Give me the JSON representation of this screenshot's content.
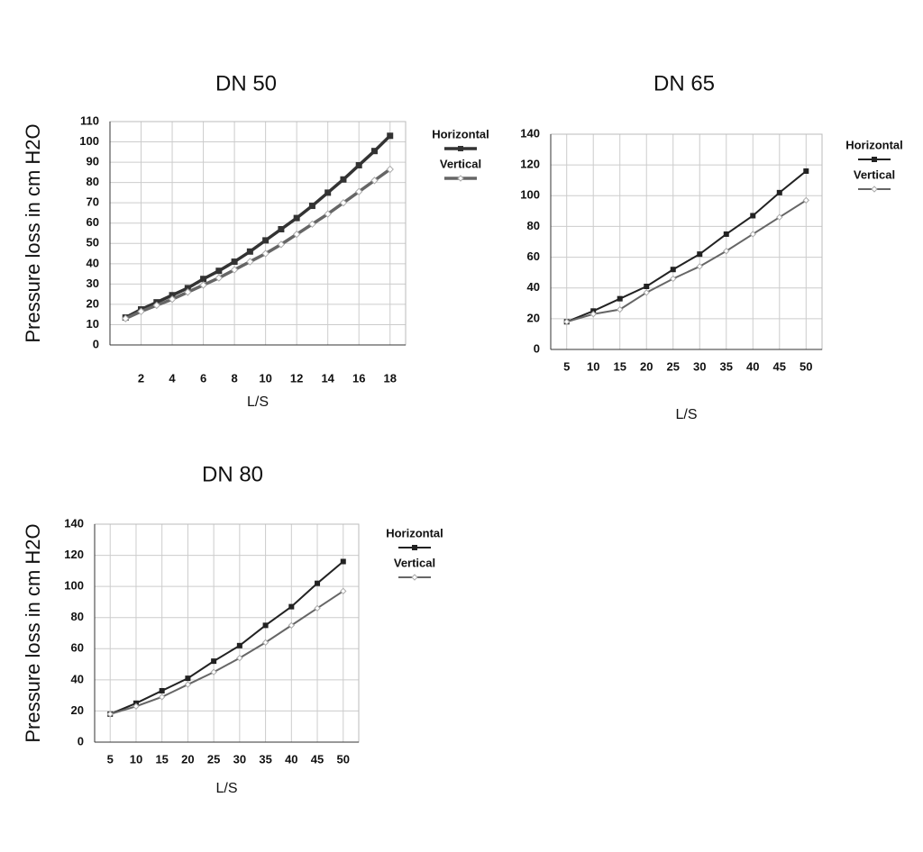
{
  "chart_data": [
    {
      "type": "line",
      "title": "DN 50",
      "x_label": "L/S",
      "y_label": "Pressure loss in cm H2O",
      "x": [
        1,
        2,
        3,
        4,
        5,
        6,
        7,
        8,
        9,
        10,
        11,
        12,
        13,
        14,
        15,
        16,
        17,
        18
      ],
      "xlim": [
        0,
        19
      ],
      "xticks": [
        2,
        4,
        6,
        8,
        10,
        12,
        14,
        16,
        18
      ],
      "ylim": [
        0,
        110
      ],
      "yticks": [
        0,
        10,
        20,
        30,
        40,
        50,
        60,
        70,
        80,
        90,
        100,
        110
      ],
      "grid": true,
      "series": [
        {
          "name": "Horizontal",
          "color": "#333333",
          "values": [
            13.5,
            17.5,
            21,
            24.5,
            28,
            32.5,
            36.5,
            41,
            46,
            51.5,
            57,
            62.5,
            68.5,
            75,
            81.5,
            88.5,
            95.5,
            103
          ]
        },
        {
          "name": "Vertical",
          "color": "#666666",
          "values": [
            13,
            16.5,
            19.5,
            22.5,
            26,
            29.5,
            33,
            37,
            41,
            45,
            49.5,
            54.5,
            59.5,
            64.5,
            70,
            75.5,
            81,
            86.5
          ]
        }
      ]
    },
    {
      "type": "line",
      "title": "DN 65",
      "x_label": "L/S",
      "x": [
        5,
        10,
        15,
        20,
        25,
        30,
        35,
        40,
        45,
        50
      ],
      "xlim": [
        2,
        53
      ],
      "xticks": [
        5,
        10,
        15,
        20,
        25,
        30,
        35,
        40,
        45,
        50
      ],
      "ylim": [
        0,
        140
      ],
      "yticks": [
        0,
        20,
        40,
        60,
        80,
        100,
        120,
        140
      ],
      "grid": true,
      "series": [
        {
          "name": "Horizontal",
          "color": "#222222",
          "values": [
            18,
            25,
            33,
            41,
            52,
            62,
            75,
            87,
            102,
            116
          ]
        },
        {
          "name": "Vertical",
          "color": "#666666",
          "values": [
            18,
            23,
            26,
            37,
            46,
            54,
            64,
            75,
            86,
            97
          ]
        }
      ]
    },
    {
      "type": "line",
      "title": "DN 80",
      "x_label": "L/S",
      "y_label": "Pressure loss in cm H2O",
      "x": [
        5,
        10,
        15,
        20,
        25,
        30,
        35,
        40,
        45,
        50
      ],
      "xlim": [
        2,
        53
      ],
      "xticks": [
        5,
        10,
        15,
        20,
        25,
        30,
        35,
        40,
        45,
        50
      ],
      "ylim": [
        0,
        140
      ],
      "yticks": [
        0,
        20,
        40,
        60,
        80,
        100,
        120,
        140
      ],
      "grid": true,
      "series": [
        {
          "name": "Horizontal",
          "color": "#222222",
          "values": [
            18,
            25,
            33,
            41,
            52,
            62,
            75,
            87,
            102,
            116
          ]
        },
        {
          "name": "Vertical",
          "color": "#666666",
          "values": [
            18,
            23,
            29,
            37,
            45,
            54,
            64,
            75,
            86,
            97
          ]
        }
      ]
    }
  ]
}
